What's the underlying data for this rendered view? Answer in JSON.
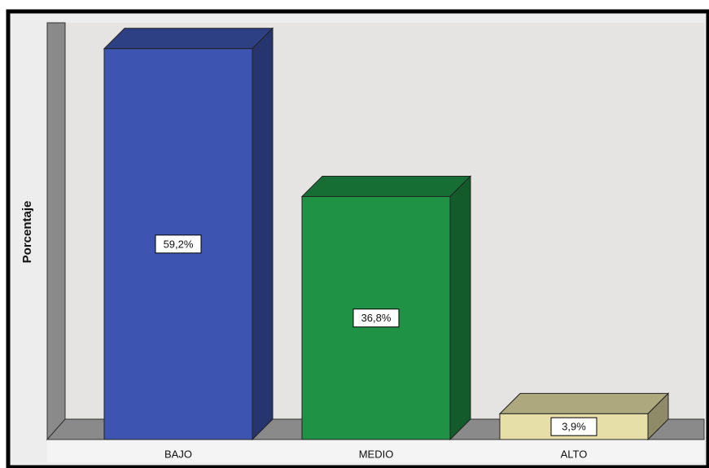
{
  "chart_data": {
    "type": "bar3d",
    "y_label": "Porcentaje",
    "categories": [
      "BAJO",
      "MEDIO",
      "ALTO"
    ],
    "values": [
      59.2,
      36.8,
      3.9
    ],
    "value_labels": [
      "59,2%",
      "36,8%",
      "3,9%"
    ],
    "colors": [
      "#3d55b0",
      "#1f9245",
      "#e6e0a8"
    ],
    "ylim": [
      0,
      62
    ]
  }
}
